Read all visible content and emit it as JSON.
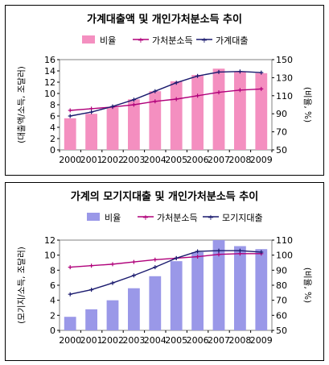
{
  "chart_data": [
    {
      "type": "bar",
      "title": "가계대출액 및 개인가처분소득 추이",
      "categories": [
        "2000",
        "2001",
        "2002",
        "2003",
        "2004",
        "2005",
        "2006",
        "2007",
        "2008",
        "2009"
      ],
      "legend": [
        "비율",
        "가처분소득",
        "가계대출"
      ],
      "legend_placement": "top",
      "ylabel": "(대출액/소득, 조달러)",
      "y2label": "(비율, %)",
      "ylim": [
        0,
        16
      ],
      "y2lim": [
        50,
        150
      ],
      "yticks": [
        "0",
        "2",
        "4",
        "6",
        "8",
        "10",
        "12",
        "14",
        "16"
      ],
      "y2ticks": [
        "50",
        "70",
        "90",
        "110",
        "130",
        "150"
      ],
      "grid": false,
      "series": [
        {
          "name": "비율",
          "type": "bar",
          "axis": "right",
          "color": "#F48FC0",
          "values": [
            85,
            90,
            97,
            106,
            115,
            126,
            133,
            140,
            137,
            135
          ]
        },
        {
          "name": "가처분소득",
          "type": "line",
          "axis": "left",
          "color": "#B0007A",
          "values": [
            7.0,
            7.3,
            7.6,
            8.0,
            8.6,
            9.0,
            9.6,
            10.2,
            10.6,
            10.8
          ]
        },
        {
          "name": "가계대출",
          "type": "line",
          "axis": "left",
          "color": "#1A1A6E",
          "values": [
            6.0,
            6.7,
            7.7,
            8.9,
            10.4,
            11.9,
            13.1,
            13.8,
            13.9,
            13.7
          ]
        }
      ]
    },
    {
      "type": "bar",
      "title": "가계의 모기지대출 및 개인가처분소득 추이",
      "categories": [
        "2000",
        "2001",
        "2002",
        "2003",
        "2004",
        "2005",
        "2006",
        "2007",
        "2008",
        "2009"
      ],
      "legend": [
        "비율",
        "가처분소득",
        "모기지대출"
      ],
      "legend_placement": "top",
      "ylabel": "(모기지/소득, 조달러)",
      "y2label": "(비율, %)",
      "ylim": [
        0,
        12
      ],
      "y2lim": [
        50,
        110
      ],
      "yticks": [
        "0",
        "2",
        "4",
        "6",
        "8",
        "10",
        "12"
      ],
      "y2ticks": [
        "50",
        "60",
        "70",
        "80",
        "90",
        "100",
        "110"
      ],
      "grid": false,
      "series": [
        {
          "name": "비율",
          "type": "bar",
          "axis": "right",
          "color": "#9A98E8",
          "values": [
            59,
            64,
            70,
            78,
            86,
            96,
            102,
            110,
            106,
            104
          ]
        },
        {
          "name": "가처분소득",
          "type": "line",
          "axis": "left",
          "color": "#B0007A",
          "values": [
            8.4,
            8.6,
            8.8,
            9.1,
            9.4,
            9.6,
            9.8,
            10.1,
            10.2,
            10.2
          ]
        },
        {
          "name": "모기지대출",
          "type": "line",
          "axis": "left",
          "color": "#1A1A6E",
          "values": [
            4.8,
            5.4,
            6.3,
            7.3,
            8.4,
            9.6,
            10.5,
            10.6,
            10.6,
            10.4
          ]
        }
      ]
    }
  ]
}
